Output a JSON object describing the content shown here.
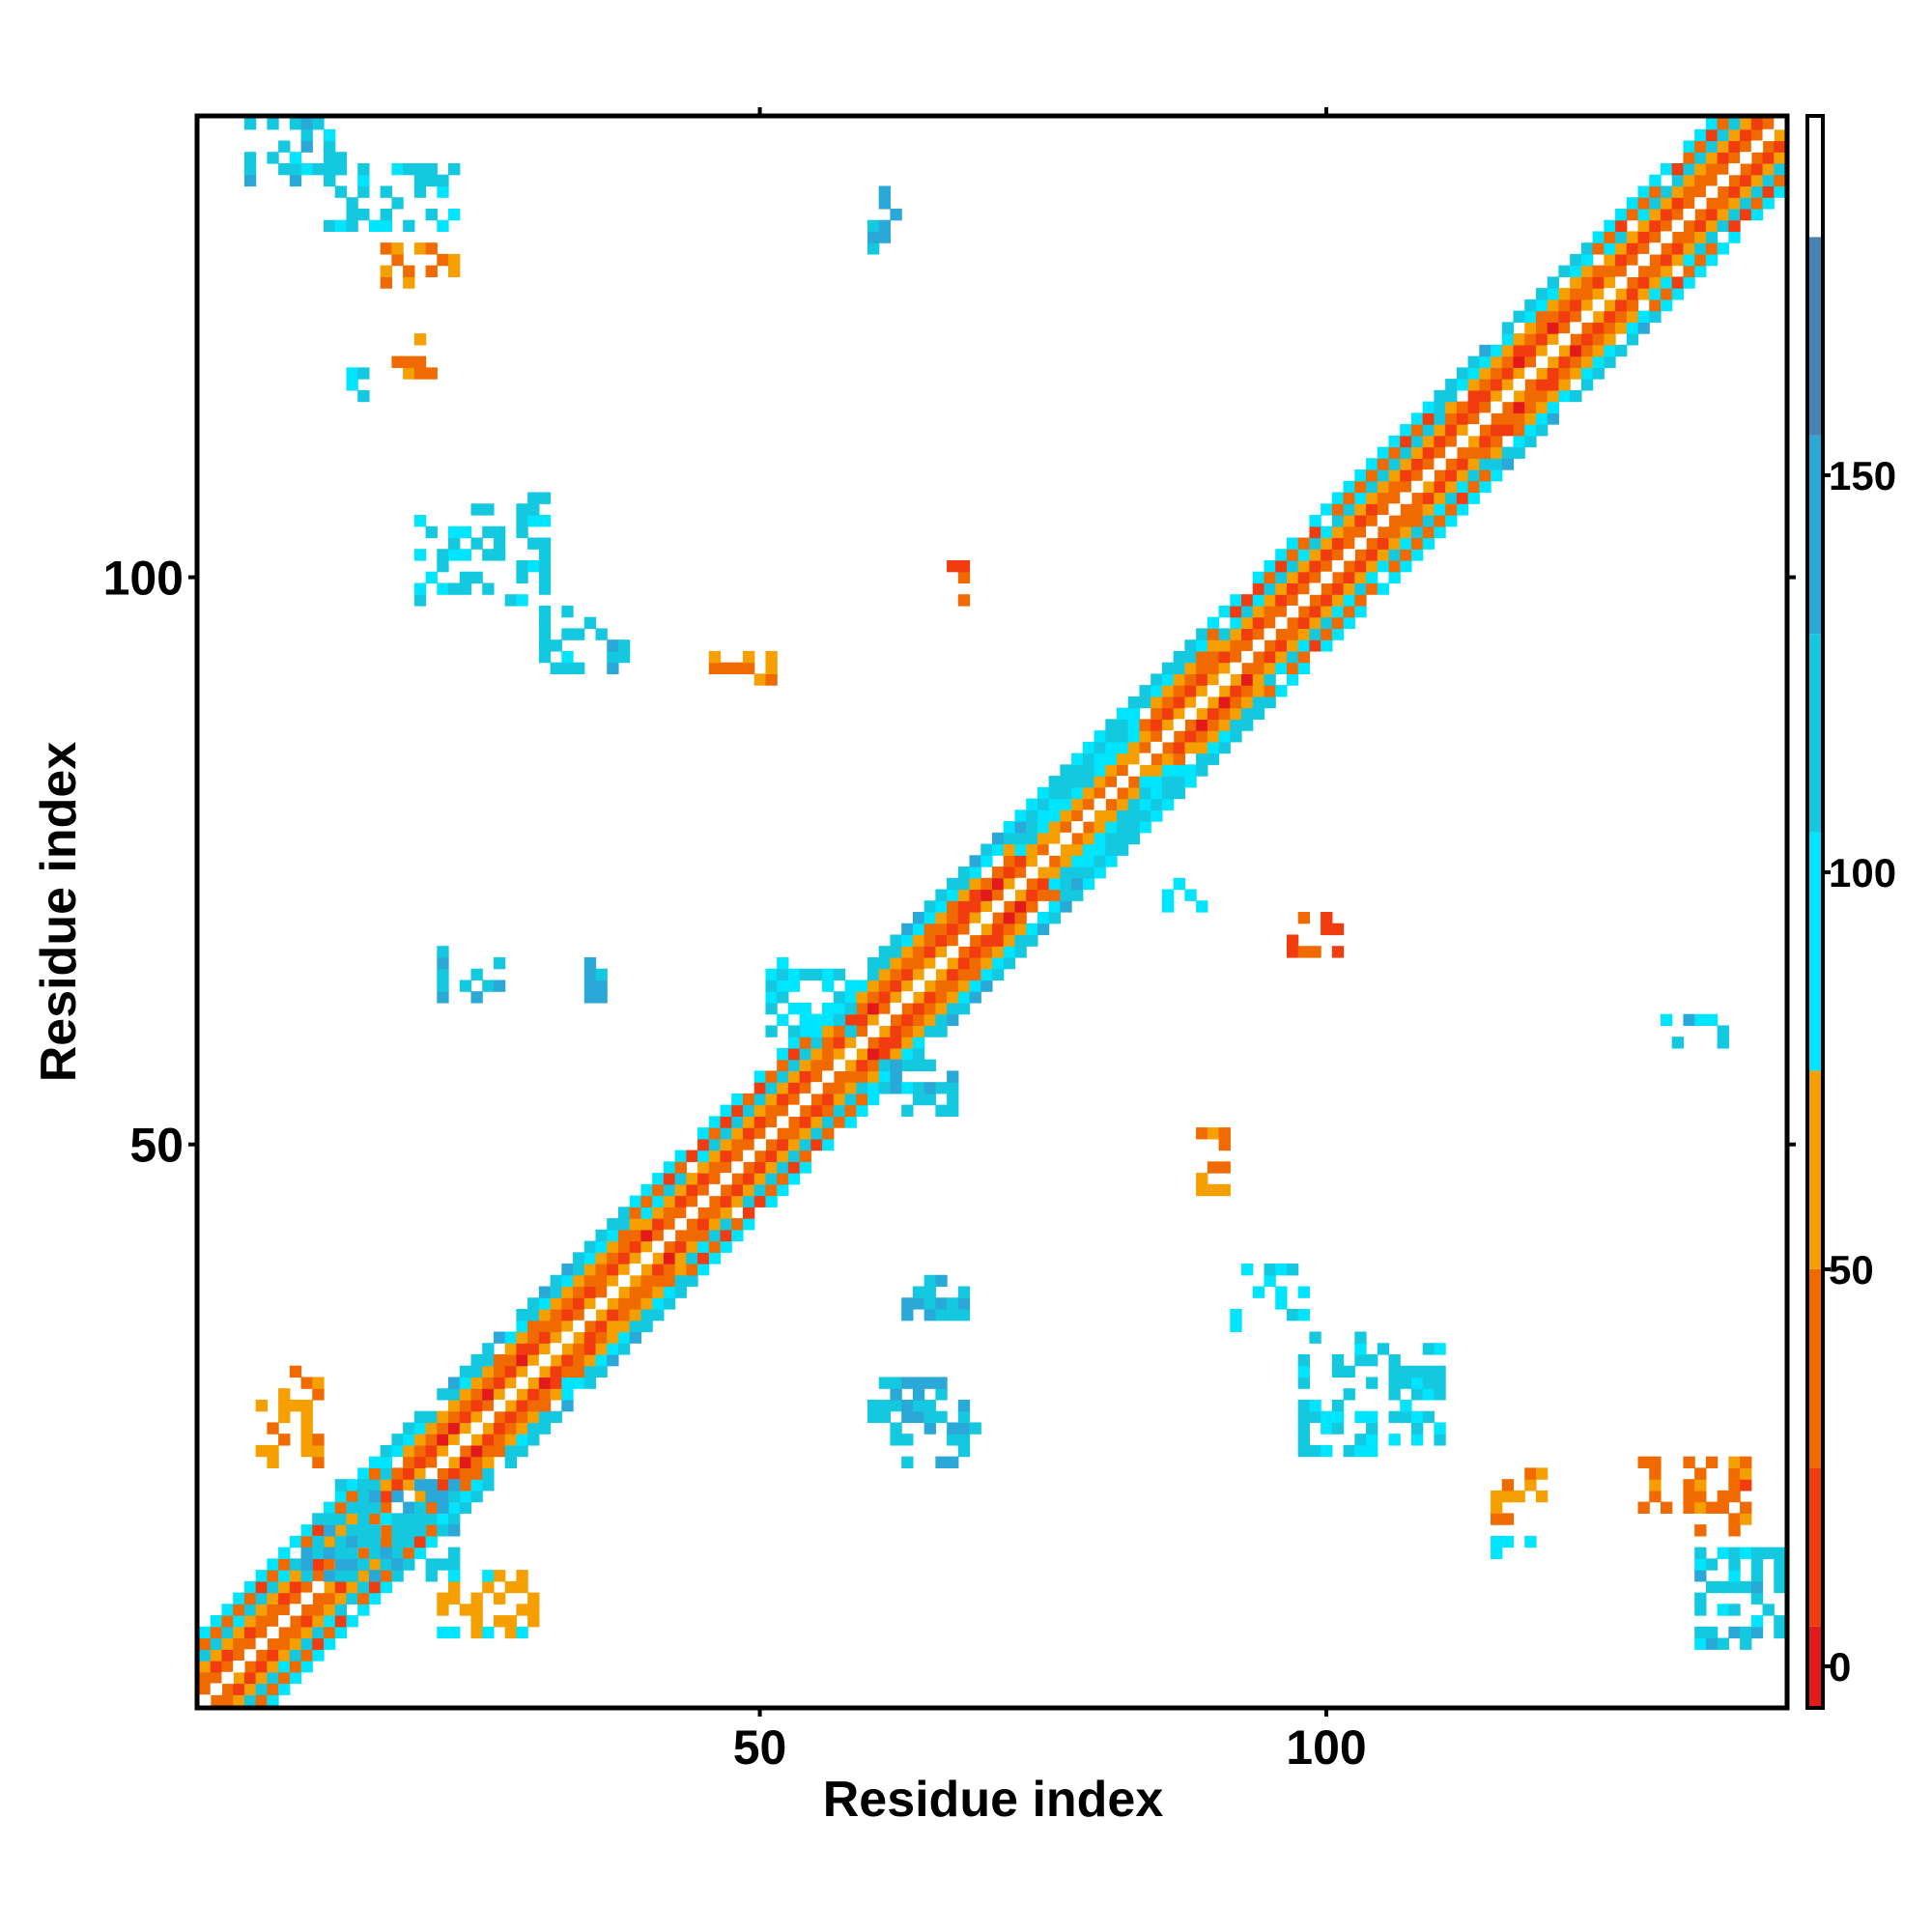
{
  "chart_data": {
    "type": "heatmap",
    "title": "",
    "xlabel": "Residue index",
    "ylabel": "Residue index",
    "n": 140,
    "xlim": [
      0.5,
      140.5
    ],
    "ylim": [
      0.5,
      140.5
    ],
    "x_ticks": [
      {
        "value": 50,
        "label": "50"
      },
      {
        "value": 100,
        "label": "100"
      }
    ],
    "y_ticks": [
      {
        "value": 50,
        "label": "50"
      },
      {
        "value": 100,
        "label": "100"
      }
    ],
    "colorbar": {
      "range": [
        -5,
        195
      ],
      "ticks": [
        {
          "value": 0,
          "label": "0"
        },
        {
          "value": 50,
          "label": "50"
        },
        {
          "value": 100,
          "label": "100"
        },
        {
          "value": 150,
          "label": "150"
        }
      ],
      "bins": [
        {
          "from": -5,
          "to": 5,
          "color": "#e31a1c"
        },
        {
          "from": 5,
          "to": 25,
          "color": "#f03c0f"
        },
        {
          "from": 25,
          "to": 50,
          "color": "#f06a00"
        },
        {
          "from": 50,
          "to": 75,
          "color": "#f5a000"
        },
        {
          "from": 75,
          "to": 105,
          "color": "#00e5ff"
        },
        {
          "from": 105,
          "to": 130,
          "color": "#14c8e0"
        },
        {
          "from": 130,
          "to": 155,
          "color": "#2aa8d8"
        },
        {
          "from": 155,
          "to": 180,
          "color": "#4682b4"
        },
        {
          "from": 180,
          "to": 195,
          "color": "#ffffff"
        }
      ]
    },
    "diagonal_band": {
      "half_width": 6
    },
    "segments": [
      {
        "from": 1,
        "to": 19,
        "pattern": "strand"
      },
      {
        "from": 20,
        "to": 41,
        "pattern": "helix"
      },
      {
        "from": 42,
        "to": 57,
        "pattern": "strand"
      },
      {
        "from": 58,
        "to": 74,
        "pattern": "helix"
      },
      {
        "from": 75,
        "to": 85,
        "pattern": "mixed"
      },
      {
        "from": 86,
        "to": 92,
        "pattern": "helix"
      },
      {
        "from": 93,
        "to": 112,
        "pattern": "strand"
      },
      {
        "from": 113,
        "to": 126,
        "pattern": "helix"
      },
      {
        "from": 127,
        "to": 140,
        "pattern": "strand"
      }
    ],
    "offdiagonal_contacts": [
      {
        "x1": 5,
        "x2": 13,
        "y1": 135,
        "y2": 140,
        "value": 115
      },
      {
        "x1": 12,
        "x2": 23,
        "y1": 131,
        "y2": 136,
        "value": 110
      },
      {
        "x1": 17,
        "x2": 23,
        "y1": 126,
        "y2": 129,
        "value": 40
      },
      {
        "x1": 18,
        "x2": 21,
        "y1": 118,
        "y2": 121,
        "value": 50
      },
      {
        "x1": 14,
        "x2": 15,
        "y1": 116,
        "y2": 118,
        "value": 95
      },
      {
        "x1": 20,
        "x2": 31,
        "y1": 98,
        "y2": 107,
        "value": 110
      },
      {
        "x1": 31,
        "x2": 38,
        "y1": 92,
        "y2": 97,
        "value": 120
      },
      {
        "x1": 46,
        "x2": 51,
        "y1": 91,
        "y2": 93,
        "value": 55
      },
      {
        "x1": 67,
        "x2": 68,
        "y1": 98,
        "y2": 101,
        "value": 30
      },
      {
        "x1": 59,
        "x2": 62,
        "y1": 129,
        "y2": 134,
        "value": 125
      },
      {
        "x1": 22,
        "x2": 27,
        "y1": 63,
        "y2": 67,
        "value": 135
      },
      {
        "x1": 35,
        "x2": 36,
        "y1": 63,
        "y2": 66,
        "value": 130
      },
      {
        "x1": 51,
        "x2": 58,
        "y1": 60,
        "y2": 66,
        "value": 100
      },
      {
        "x1": 61,
        "x2": 67,
        "y1": 53,
        "y2": 57,
        "value": 120
      },
      {
        "x1": 86,
        "x2": 89,
        "y1": 71,
        "y2": 73,
        "value": 95
      },
      {
        "x1": 97,
        "x2": 101,
        "y1": 67,
        "y2": 70,
        "value": 25
      },
      {
        "x1": 130,
        "x2": 135,
        "y1": 59,
        "y2": 61,
        "value": 115
      },
      {
        "x1": 89,
        "x2": 91,
        "y1": 46,
        "y2": 51,
        "value": 45
      },
      {
        "x1": 92,
        "x2": 98,
        "y1": 34,
        "y2": 39,
        "value": 95
      },
      {
        "x1": 98,
        "x2": 110,
        "y1": 23,
        "y2": 33,
        "value": 110
      },
      {
        "x1": 115,
        "x2": 119,
        "y1": 17,
        "y2": 21,
        "value": 55
      },
      {
        "x1": 115,
        "x2": 118,
        "y1": 14,
        "y2": 15,
        "value": 95
      },
      {
        "x1": 128,
        "x2": 137,
        "y1": 16,
        "y2": 22,
        "value": 40
      },
      {
        "x1": 133,
        "x2": 140,
        "y1": 6,
        "y2": 14,
        "value": 115
      },
      {
        "x1": 63,
        "x2": 68,
        "y1": 35,
        "y2": 38,
        "value": 125
      },
      {
        "x1": 60,
        "x2": 69,
        "y1": 22,
        "y2": 29,
        "value": 130
      },
      {
        "x1": 6,
        "x2": 11,
        "y1": 22,
        "y2": 30,
        "value": 60
      },
      {
        "x1": 10,
        "x2": 23,
        "y1": 12,
        "y2": 20,
        "value": 120
      },
      {
        "x1": 22,
        "x2": 30,
        "y1": 7,
        "y2": 12,
        "value": 70
      }
    ]
  }
}
